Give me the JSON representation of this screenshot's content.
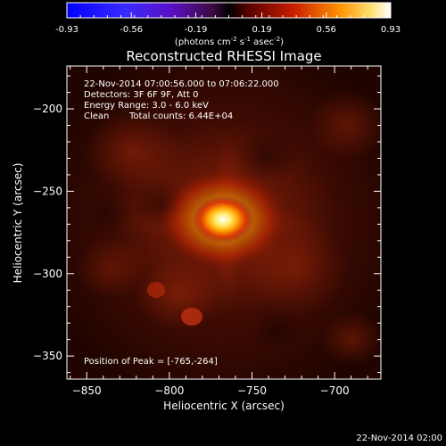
{
  "colorbar": {
    "ticks": [
      "-0.93",
      "-0.56",
      "-0.19",
      "0.19",
      "0.56",
      "0.93"
    ],
    "units_prefix": "(photons cm",
    "units_exp1": "-2",
    "units_mid": " s",
    "units_exp2": "-1",
    "units_mid2": " asec",
    "units_exp3": "-2",
    "units_suffix": ")"
  },
  "chart_data": {
    "type": "heatmap",
    "title": "Reconstructed RHESSI Image",
    "xlabel": "Heliocentric X (arcsec)",
    "ylabel": "Heliocentric Y (arcsec)",
    "xlim": [
      -862,
      -672
    ],
    "ylim": [
      -364,
      -174
    ],
    "xticks": [
      -850,
      -800,
      -750,
      -700
    ],
    "yticks": [
      -200,
      -250,
      -300,
      -350
    ],
    "xtick_labels": [
      "−850",
      "−800",
      "−750",
      "−700"
    ],
    "ytick_labels": [
      "−200",
      "−250",
      "−300",
      "−350"
    ],
    "color_range": [
      -0.93,
      0.93
    ],
    "peak": {
      "x": -765,
      "y": -264
    },
    "annotations": {
      "time": "22-Nov-2014 07:00:56.000 to 07:06:22.000",
      "detectors": "Detectors: 3F 6F 9F, Att 0",
      "energy": "Energy Range: 3.0 - 6.0 keV",
      "method": "Clean",
      "counts": "Total counts: 6.44E+04",
      "peak_text": "Position of Peak = [-765,-264]"
    }
  },
  "footer": {
    "timestamp": "22-Nov-2014 02:00"
  }
}
